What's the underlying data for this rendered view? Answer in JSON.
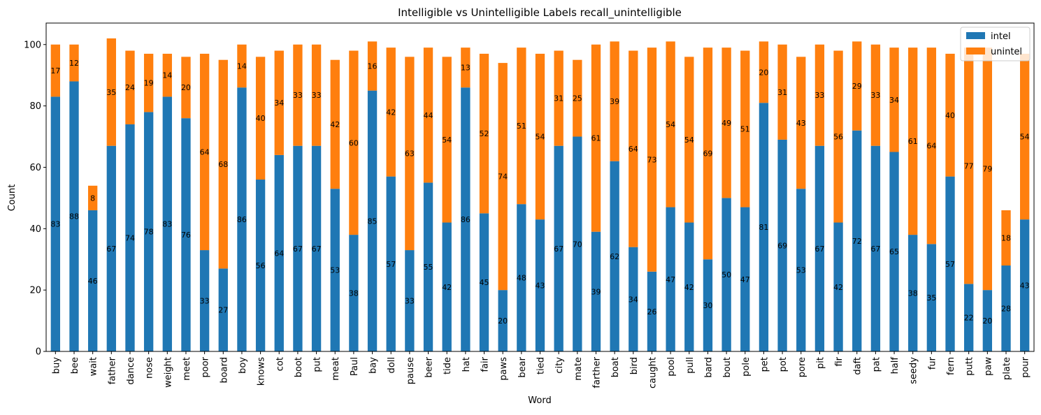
{
  "chart_data": {
    "type": "bar",
    "stacked": true,
    "title": "Intelligible vs Unintelligible Labels recall_unintelligible",
    "xlabel": "Word",
    "ylabel": "Count",
    "ylim": [
      0,
      107
    ],
    "yticks": [
      0,
      20,
      40,
      60,
      80,
      100
    ],
    "grid": false,
    "legend_position": "top-right",
    "categories": [
      "buy",
      "bee",
      "wait",
      "father",
      "dance",
      "nose",
      "weight",
      "meet",
      "poor",
      "board",
      "boy",
      "knows",
      "cot",
      "boot",
      "put",
      "meat",
      "Paul",
      "bay",
      "doll",
      "pause",
      "beer",
      "tide",
      "hat",
      "fair",
      "paws",
      "bear",
      "tied",
      "city",
      "mate",
      "farther",
      "boat",
      "bird",
      "caught",
      "pool",
      "pull",
      "bard",
      "bout",
      "pole",
      "pet",
      "pot",
      "pore",
      "pit",
      "fir",
      "daft",
      "pat",
      "half",
      "seedy",
      "fur",
      "fern",
      "putt",
      "paw",
      "plate",
      "pour"
    ],
    "series": [
      {
        "name": "intel",
        "color": "#1f77b4",
        "values": [
          83,
          88,
          46,
          67,
          74,
          78,
          83,
          76,
          33,
          27,
          86,
          56,
          64,
          67,
          67,
          53,
          38,
          85,
          57,
          33,
          55,
          42,
          86,
          45,
          20,
          48,
          43,
          67,
          70,
          39,
          62,
          34,
          26,
          47,
          42,
          30,
          50,
          47,
          81,
          69,
          53,
          67,
          42,
          72,
          67,
          65,
          38,
          35,
          57,
          22,
          20,
          28,
          43
        ]
      },
      {
        "name": "unintel",
        "color": "#ff7f0e",
        "values": [
          17,
          12,
          8,
          35,
          24,
          19,
          14,
          20,
          64,
          68,
          14,
          40,
          34,
          33,
          33,
          42,
          60,
          16,
          42,
          63,
          44,
          54,
          13,
          52,
          74,
          51,
          54,
          31,
          25,
          61,
          39,
          64,
          73,
          54,
          54,
          69,
          49,
          51,
          20,
          31,
          43,
          33,
          56,
          29,
          33,
          34,
          61,
          64,
          40,
          77,
          79,
          18,
          54
        ]
      }
    ]
  }
}
